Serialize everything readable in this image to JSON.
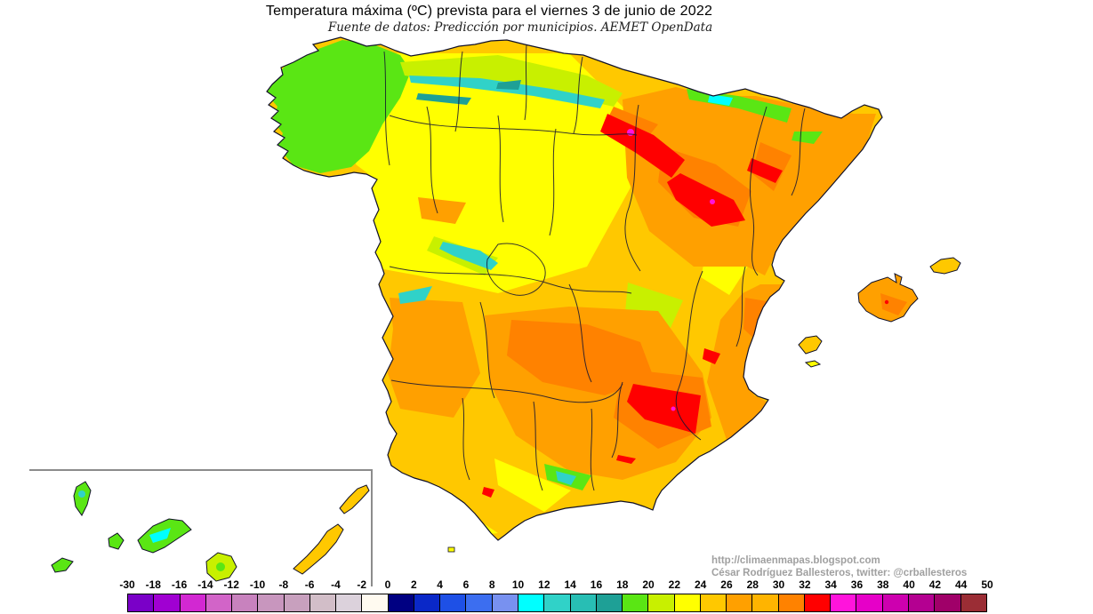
{
  "title": "Temperatura máxima (ºC) prevista para el viernes 3 de junio de 2022",
  "subtitle": "Fuente de datos: Predicción por municipios. AEMET OpenData",
  "credits": {
    "url": "http://climaenmapas.blogspot.com",
    "author": "César Rodríguez Ballesteros, twitter: @crballesteros"
  },
  "colorbar": {
    "unit": "ºC",
    "labels": [
      "-30",
      "-18",
      "-16",
      "-14",
      "-12",
      "-10",
      "-8",
      "-6",
      "-4",
      "-2",
      "0",
      "2",
      "4",
      "6",
      "8",
      "10",
      "12",
      "14",
      "16",
      "18",
      "20",
      "22",
      "24",
      "26",
      "28",
      "30",
      "32",
      "34",
      "36",
      "38",
      "40",
      "42",
      "44",
      "50"
    ],
    "colors": [
      "#7A00C8",
      "#A000D2",
      "#D228D2",
      "#D264C8",
      "#C882BE",
      "#C896BE",
      "#C8A0BE",
      "#D2BEC8",
      "#DCD2DC",
      "#FFFAF0",
      "#000082",
      "#0A28C8",
      "#1E50E6",
      "#3C6EF0",
      "#7891F0",
      "#00FFFF",
      "#30D2C8",
      "#28BEB4",
      "#1EA096",
      "#5AE614",
      "#C8F000",
      "#FFFF00",
      "#FFC800",
      "#FFA000",
      "#FFB400",
      "#FF8200",
      "#FF0000",
      "#FF14DC",
      "#E600C8",
      "#CD00AF",
      "#B40091",
      "#A00069",
      "#9B2D35"
    ]
  },
  "map_colors": {
    "base": "#FFC800",
    "cool_green": "#5AE614",
    "yellow_green": "#C8F000",
    "yellow": "#FFFF00",
    "orange": "#FFA000",
    "dark_orange": "#FF8200",
    "red": "#FF0000",
    "magenta": "#FF14DC",
    "cyan": "#30D2C8",
    "teal": "#1EA096",
    "border": "#141432",
    "inset_frame": "#8C8C8C"
  }
}
